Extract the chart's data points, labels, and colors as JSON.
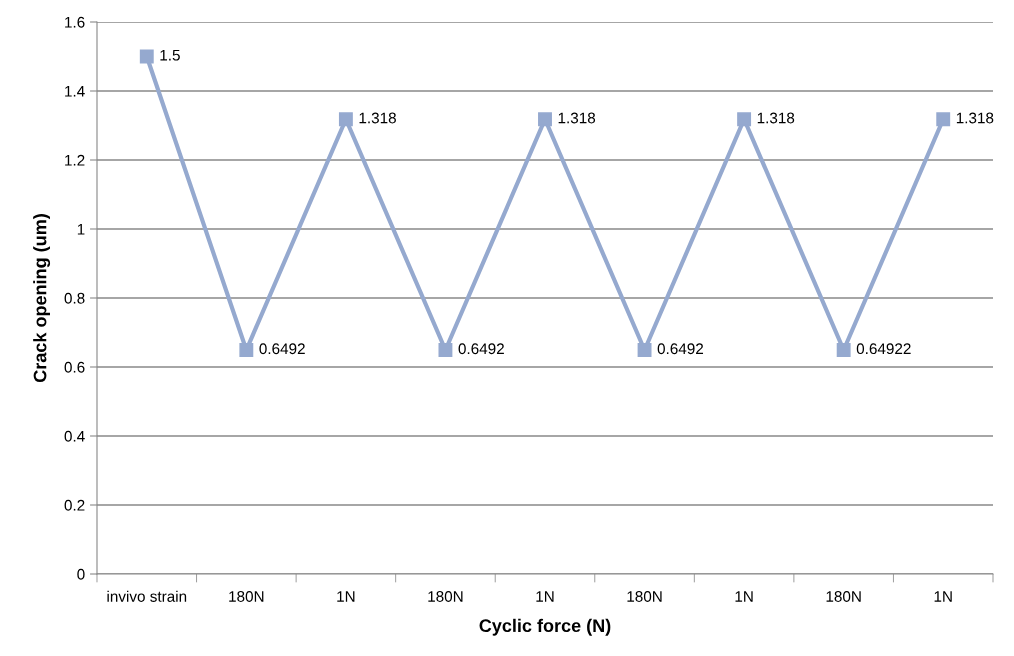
{
  "chart_data": {
    "type": "line",
    "xlabel": "Cyclic force (N)",
    "ylabel": "Crack opening (um)",
    "categories": [
      "invivo strain",
      "180N",
      "1N",
      "180N",
      "1N",
      "180N",
      "1N",
      "180N",
      "1N"
    ],
    "series": [
      {
        "color": "#95a9cf",
        "values": [
          1.5,
          0.6492,
          1.318,
          0.6492,
          1.318,
          0.6492,
          1.318,
          0.64922,
          1.318
        ]
      }
    ],
    "ylim": [
      0,
      1.6
    ],
    "yticks": [
      0,
      0.2,
      0.4,
      0.6,
      0.8,
      1,
      1.2,
      1.4,
      1.6
    ],
    "grid": "y",
    "marker": "square",
    "line_style": "solid",
    "data_labels": true,
    "legend": false
  }
}
